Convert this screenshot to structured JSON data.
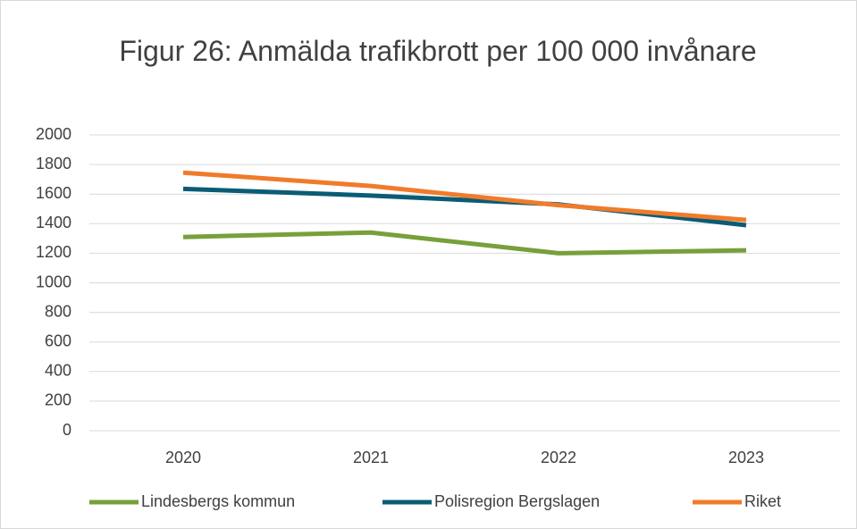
{
  "chart_data": {
    "type": "line",
    "title": "Figur 26: Anmälda trafikbrott per 100 000 invånare",
    "categories": [
      "2020",
      "2021",
      "2022",
      "2023"
    ],
    "series": [
      {
        "name": "Lindesbergs kommun",
        "color": "#77a03b",
        "values": [
          1310,
          1340,
          1200,
          1220
        ]
      },
      {
        "name": "Polisregion Bergslagen",
        "color": "#0a5c75",
        "values": [
          1635,
          1590,
          1530,
          1390
        ]
      },
      {
        "name": "Riket",
        "color": "#f07b2a",
        "values": [
          1745,
          1655,
          1525,
          1425
        ]
      }
    ],
    "ylim": [
      0,
      2000
    ],
    "yticks": [
      0,
      200,
      400,
      600,
      800,
      1000,
      1200,
      1400,
      1600,
      1800,
      2000
    ],
    "grid": true,
    "legend": "bottom"
  }
}
